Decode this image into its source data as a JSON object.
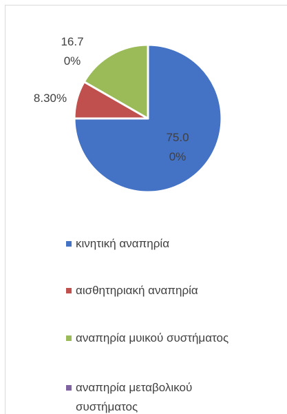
{
  "chart_data": {
    "type": "pie",
    "categories": [
      "κινητική αναπηρία",
      "αισθητηριακή αναπηρία",
      "αναπηρία μυικού συστήματος",
      "αναπηρία μεταβολικού συστήματος"
    ],
    "values": [
      75.0,
      8.3,
      16.7,
      0
    ],
    "value_labels": [
      "75.00%",
      "8.30%",
      "16.70%",
      null
    ],
    "colors": [
      "#4472c4",
      "#c0504d",
      "#9bbb59",
      "#8064a2"
    ],
    "legend": "bottom"
  }
}
